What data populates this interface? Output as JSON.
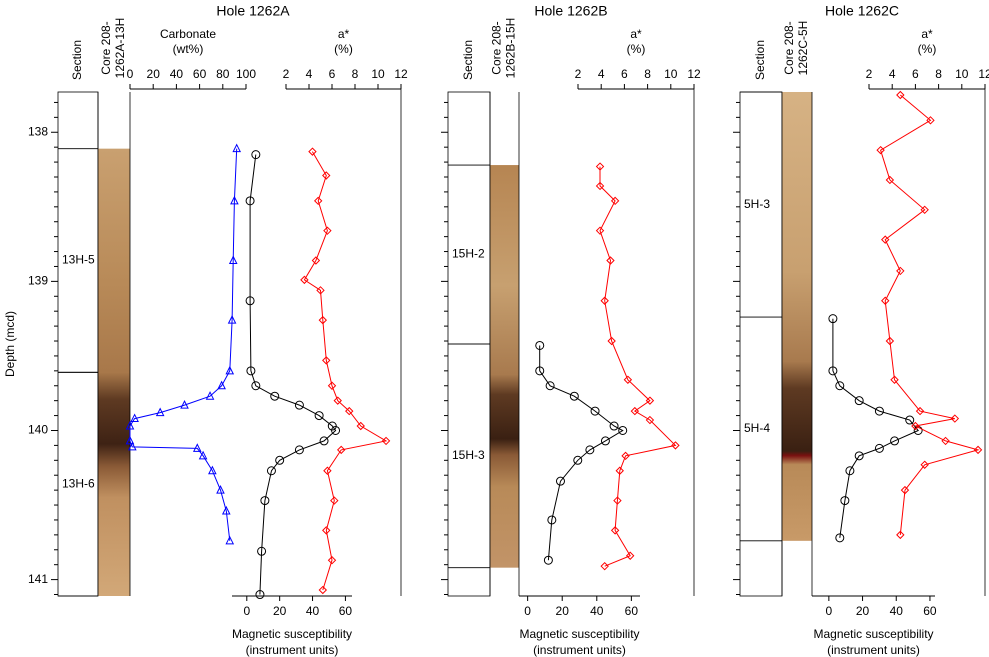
{
  "chart_data": [
    {
      "type": "core-log",
      "title": "Hole 1262A",
      "y_label": "Depth (mcd)",
      "show_ytick_labels": true,
      "ylim": [
        137.73,
        141.11
      ],
      "yticks": [
        138,
        139,
        140,
        141
      ],
      "yminor": [
        137.8,
        137.9,
        138.1,
        138.2,
        138.3,
        138.4,
        138.5,
        138.6,
        138.7,
        138.8,
        138.9,
        139.1,
        139.2,
        139.3,
        139.4,
        139.5,
        139.6,
        139.7,
        139.8,
        139.9,
        140.1,
        140.2,
        140.3,
        140.4,
        140.5,
        140.6,
        140.7,
        140.8,
        140.9,
        141.1
      ],
      "section_header": "Section",
      "core_label": [
        "Core 208-",
        "1262A-13H"
      ],
      "sections": [
        {
          "label": "13H-5",
          "top": 138.11,
          "bottom": 139.61
        },
        {
          "label": "13H-6",
          "top": 139.61,
          "bottom": 141.11
        }
      ],
      "series": [
        {
          "label": [
            "Carbonate",
            "(wt%)"
          ],
          "axis": "top",
          "color": "#0000ff",
          "marker": "triangle",
          "xlim": [
            0,
            100
          ],
          "xticks": [
            0,
            20,
            40,
            60,
            80,
            100
          ],
          "depth": [
            138.11,
            138.46,
            138.86,
            139.26,
            139.6,
            139.7,
            139.77,
            139.83,
            139.88,
            139.92,
            139.97,
            140.07,
            140.11,
            140.12,
            140.17,
            140.27,
            140.4,
            140.54,
            140.74
          ],
          "values": [
            92,
            90,
            89,
            88,
            86,
            79,
            69,
            47,
            26,
            4,
            0,
            0,
            2,
            58,
            63,
            71,
            78,
            83,
            86
          ]
        },
        {
          "label": [
            "Magnetic susceptibility",
            "(instrument units)"
          ],
          "axis": "bottom",
          "color": "#000000",
          "marker": "circle",
          "xlim": [
            -9,
            64
          ],
          "xticks": [
            0,
            20,
            40,
            60
          ],
          "depth": [
            138.15,
            138.46,
            139.13,
            139.6,
            139.7,
            139.77,
            139.83,
            139.9,
            139.97,
            140.0,
            140.07,
            140.13,
            140.2,
            140.27,
            140.47,
            140.81,
            141.1
          ],
          "values": [
            5.5,
            2,
            2,
            2.5,
            5.5,
            17,
            32,
            44,
            52,
            54,
            47,
            32,
            20,
            15,
            11,
            9,
            8
          ]
        },
        {
          "label": [
            "a*",
            "(%)"
          ],
          "axis": "top",
          "color": "#ff0000",
          "marker": "diamond",
          "xlim": [
            2,
            12
          ],
          "xticks": [
            2,
            4,
            6,
            8,
            10,
            12
          ],
          "depth": [
            138.13,
            138.29,
            138.46,
            138.66,
            138.86,
            138.99,
            139.06,
            139.26,
            139.53,
            139.7,
            139.8,
            139.87,
            139.97,
            140.07,
            140.13,
            140.27,
            140.47,
            140.67,
            140.87,
            141.07
          ],
          "values": [
            4.3,
            5.5,
            4.8,
            5.6,
            4.6,
            3.6,
            5.0,
            5.2,
            5.5,
            6.0,
            6.5,
            7.5,
            8.5,
            10.7,
            6.8,
            5.6,
            6.2,
            5.5,
            6.0,
            5.2
          ]
        }
      ]
    },
    {
      "type": "core-log",
      "title": "Hole 1262B",
      "show_ytick_labels": false,
      "ylim": [
        137.73,
        141.11
      ],
      "yticks": [
        138,
        139,
        140,
        141
      ],
      "yminor": [
        137.8,
        137.9,
        138.1,
        138.2,
        138.3,
        138.4,
        138.5,
        138.6,
        138.7,
        138.8,
        138.9,
        139.1,
        139.2,
        139.3,
        139.4,
        139.5,
        139.6,
        139.7,
        139.8,
        139.9,
        140.1,
        140.2,
        140.3,
        140.4,
        140.5,
        140.6,
        140.7,
        140.8,
        140.9,
        141.1
      ],
      "section_header": "Section",
      "core_label": [
        "Core 208-",
        "1262B-15H"
      ],
      "sections": [
        {
          "label": "15H-2",
          "top": 138.22,
          "bottom": 139.42
        },
        {
          "label": "15H-3",
          "top": 139.42,
          "bottom": 140.92
        }
      ],
      "series": [
        {
          "label": [
            "Magnetic susceptibility",
            "(instrument units)"
          ],
          "axis": "bottom",
          "color": "#000000",
          "marker": "circle",
          "xlim": [
            -5,
            65
          ],
          "xticks": [
            0,
            20,
            40,
            60
          ],
          "depth": [
            139.43,
            139.6,
            139.7,
            139.77,
            139.87,
            139.97,
            140.0,
            140.07,
            140.13,
            140.2,
            140.34,
            140.6,
            140.87
          ],
          "values": [
            7,
            7,
            13,
            27,
            39,
            50,
            55,
            45,
            36,
            29,
            19,
            14,
            12
          ]
        },
        {
          "label": [
            "a*",
            "(%)"
          ],
          "axis": "top",
          "color": "#ff0000",
          "marker": "diamond",
          "xlim": [
            2,
            12
          ],
          "xticks": [
            2,
            4,
            6,
            8,
            10,
            12
          ],
          "depth": [
            138.23,
            138.36,
            138.46,
            138.66,
            138.86,
            139.13,
            139.4,
            139.66,
            139.8,
            139.87,
            139.93,
            140.1,
            140.17,
            140.27,
            140.47,
            140.67,
            140.84,
            140.91
          ],
          "values": [
            3.9,
            3.9,
            5.2,
            3.9,
            4.8,
            4.3,
            4.9,
            6.3,
            8.2,
            6.9,
            8.2,
            10.4,
            6.1,
            5.6,
            5.4,
            5.2,
            6.5,
            4.3
          ]
        }
      ]
    },
    {
      "type": "core-log",
      "title": "Hole 1262C",
      "show_ytick_labels": false,
      "ylim": [
        137.73,
        141.11
      ],
      "yticks": [
        138,
        139,
        140,
        141
      ],
      "yminor": [
        137.8,
        137.9,
        138.1,
        138.2,
        138.3,
        138.4,
        138.5,
        138.6,
        138.7,
        138.8,
        138.9,
        139.1,
        139.2,
        139.3,
        139.4,
        139.5,
        139.6,
        139.7,
        139.8,
        139.9,
        140.1,
        140.2,
        140.3,
        140.4,
        140.5,
        140.6,
        140.7,
        140.8,
        140.9,
        141.1
      ],
      "section_header": "Section",
      "core_label": [
        "Core 208-",
        "1262C-5H"
      ],
      "sections": [
        {
          "label": "5H-3",
          "top": 137.73,
          "bottom": 139.24
        },
        {
          "label": "5H-4",
          "top": 139.24,
          "bottom": 140.74
        }
      ],
      "series": [
        {
          "label": [
            "Magnetic susceptibility",
            "(instrument units)"
          ],
          "axis": "bottom",
          "color": "#000000",
          "marker": "circle",
          "xlim": [
            -10,
            63
          ],
          "xticks": [
            0,
            20,
            40,
            60
          ],
          "depth": [
            139.25,
            139.6,
            139.7,
            139.8,
            139.87,
            139.93,
            140.0,
            140.07,
            140.12,
            140.17,
            140.27,
            140.47,
            140.72
          ],
          "values": [
            2.4,
            2.4,
            6.5,
            18,
            30,
            48,
            53,
            39,
            30,
            18,
            12.5,
            9.5,
            6.5
          ]
        },
        {
          "label": [
            "a*",
            "(%)"
          ],
          "axis": "top",
          "color": "#ff0000",
          "marker": "diamond",
          "xlim": [
            2,
            12
          ],
          "xticks": [
            2,
            4,
            6,
            8,
            10,
            12
          ],
          "depth": [
            137.75,
            137.92,
            138.12,
            138.32,
            138.52,
            138.72,
            138.93,
            139.13,
            139.4,
            139.66,
            139.87,
            139.92,
            139.97,
            140.07,
            140.13,
            140.23,
            140.4,
            140.7
          ],
          "values": [
            4.7,
            7.3,
            3.0,
            3.8,
            6.8,
            3.4,
            4.7,
            3.4,
            3.8,
            4.2,
            6.4,
            9.4,
            6.0,
            8.6,
            11.4,
            6.8,
            5.1,
            4.7
          ]
        }
      ]
    }
  ]
}
